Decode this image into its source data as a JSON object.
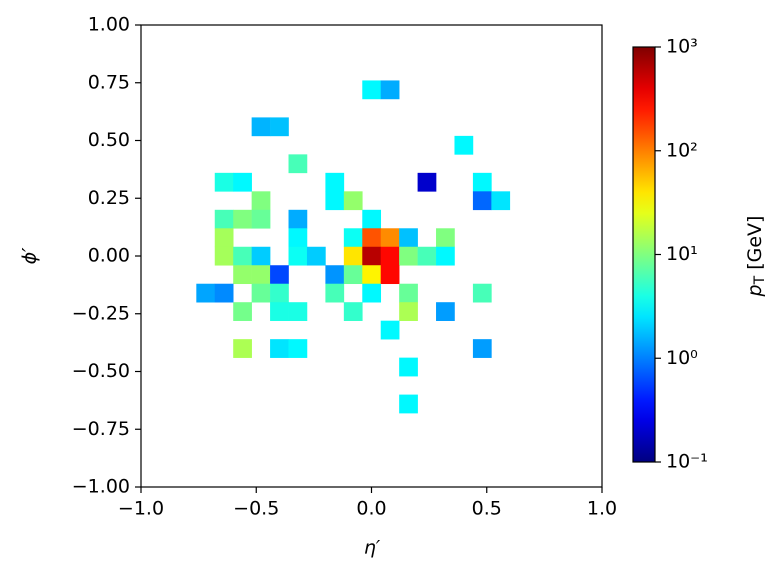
{
  "chart_data": {
    "type": "heatmap",
    "x_label": "η′",
    "y_label": "ϕ′",
    "colorbar_label": "pT [GeV]",
    "xlim": [
      -1,
      1
    ],
    "ylim": [
      -1,
      1
    ],
    "xticks": [
      {
        "value": -1,
        "label": "−1.0"
      },
      {
        "value": -0.5,
        "label": "−0.5"
      },
      {
        "value": 0,
        "label": "0.0"
      },
      {
        "value": 0.5,
        "label": "0.5"
      },
      {
        "value": 1,
        "label": "1.0"
      }
    ],
    "yticks": [
      {
        "value": 1,
        "label": "1.00"
      },
      {
        "value": 0.75,
        "label": "0.75"
      },
      {
        "value": 0.5,
        "label": "0.50"
      },
      {
        "value": 0.25,
        "label": "0.25"
      },
      {
        "value": 0,
        "label": "0.00"
      },
      {
        "value": -0.25,
        "label": "−0.25"
      },
      {
        "value": -0.5,
        "label": "−0.50"
      },
      {
        "value": -0.75,
        "label": "−0.75"
      },
      {
        "value": -1,
        "label": "−1.00"
      }
    ],
    "colormap": "jet",
    "color_scale": "log",
    "clim": [
      0.1,
      1000
    ],
    "cticks": [
      {
        "value": 0.1,
        "label": "10⁻¹"
      },
      {
        "value": 1,
        "label": "10⁰"
      },
      {
        "value": 10,
        "label": "10¹"
      },
      {
        "value": 100,
        "label": "10²"
      },
      {
        "value": 1000,
        "label": "10³"
      }
    ],
    "x": [
      0.0,
      0.08,
      -0.48,
      -0.4,
      0.4,
      -0.32,
      -0.64,
      -0.56,
      -0.16,
      0.24,
      0.48,
      -0.48,
      -0.16,
      -0.08,
      0.48,
      0.56,
      -0.64,
      -0.56,
      -0.48,
      -0.32,
      0.0,
      -0.64,
      -0.32,
      -0.08,
      0.0,
      0.08,
      0.16,
      0.32,
      -0.64,
      -0.56,
      -0.48,
      -0.32,
      -0.24,
      -0.08,
      0.0,
      0.08,
      0.16,
      0.24,
      0.32,
      -0.56,
      -0.48,
      -0.4,
      -0.16,
      -0.08,
      0.0,
      0.08,
      -0.72,
      -0.64,
      -0.48,
      -0.4,
      -0.16,
      0.0,
      0.16,
      0.48,
      -0.56,
      -0.4,
      -0.32,
      -0.08,
      0.16,
      0.32,
      0.08,
      -0.56,
      -0.4,
      -0.32,
      0.48,
      0.16,
      0.16
    ],
    "y": [
      0.72,
      0.72,
      0.56,
      0.56,
      0.48,
      0.4,
      0.32,
      0.32,
      0.32,
      0.32,
      0.32,
      0.24,
      0.24,
      0.24,
      0.24,
      0.24,
      0.16,
      0.16,
      0.16,
      0.16,
      0.16,
      0.08,
      0.08,
      0.08,
      0.08,
      0.08,
      0.08,
      0.08,
      0.0,
      0.0,
      0.0,
      0.0,
      0.0,
      0.0,
      0.0,
      0.0,
      0.0,
      0.0,
      0.0,
      -0.08,
      -0.08,
      -0.08,
      -0.08,
      -0.08,
      -0.08,
      -0.08,
      -0.16,
      -0.16,
      -0.16,
      -0.16,
      -0.16,
      -0.16,
      -0.16,
      -0.16,
      -0.24,
      -0.24,
      -0.24,
      -0.24,
      -0.24,
      -0.24,
      -0.32,
      -0.4,
      -0.4,
      -0.4,
      -0.4,
      -0.48,
      -0.64
    ],
    "values": [
      3,
      1.5,
      1.6,
      1.8,
      3,
      6,
      4,
      3,
      3,
      0.2,
      3,
      10,
      3,
      12,
      0.8,
      2.5,
      6,
      10,
      8,
      1.5,
      3,
      14,
      3,
      3.5,
      150,
      90,
      1.8,
      10,
      14,
      6,
      2,
      3.5,
      2,
      40,
      600,
      300,
      10,
      6,
      3,
      12,
      12,
      0.6,
      1.2,
      8,
      35,
      300,
      1.4,
      1.1,
      8,
      5,
      6,
      3,
      8,
      6,
      9,
      4,
      4,
      5,
      15,
      1.3,
      3,
      15,
      2.5,
      3,
      1.3,
      3,
      3
    ]
  }
}
